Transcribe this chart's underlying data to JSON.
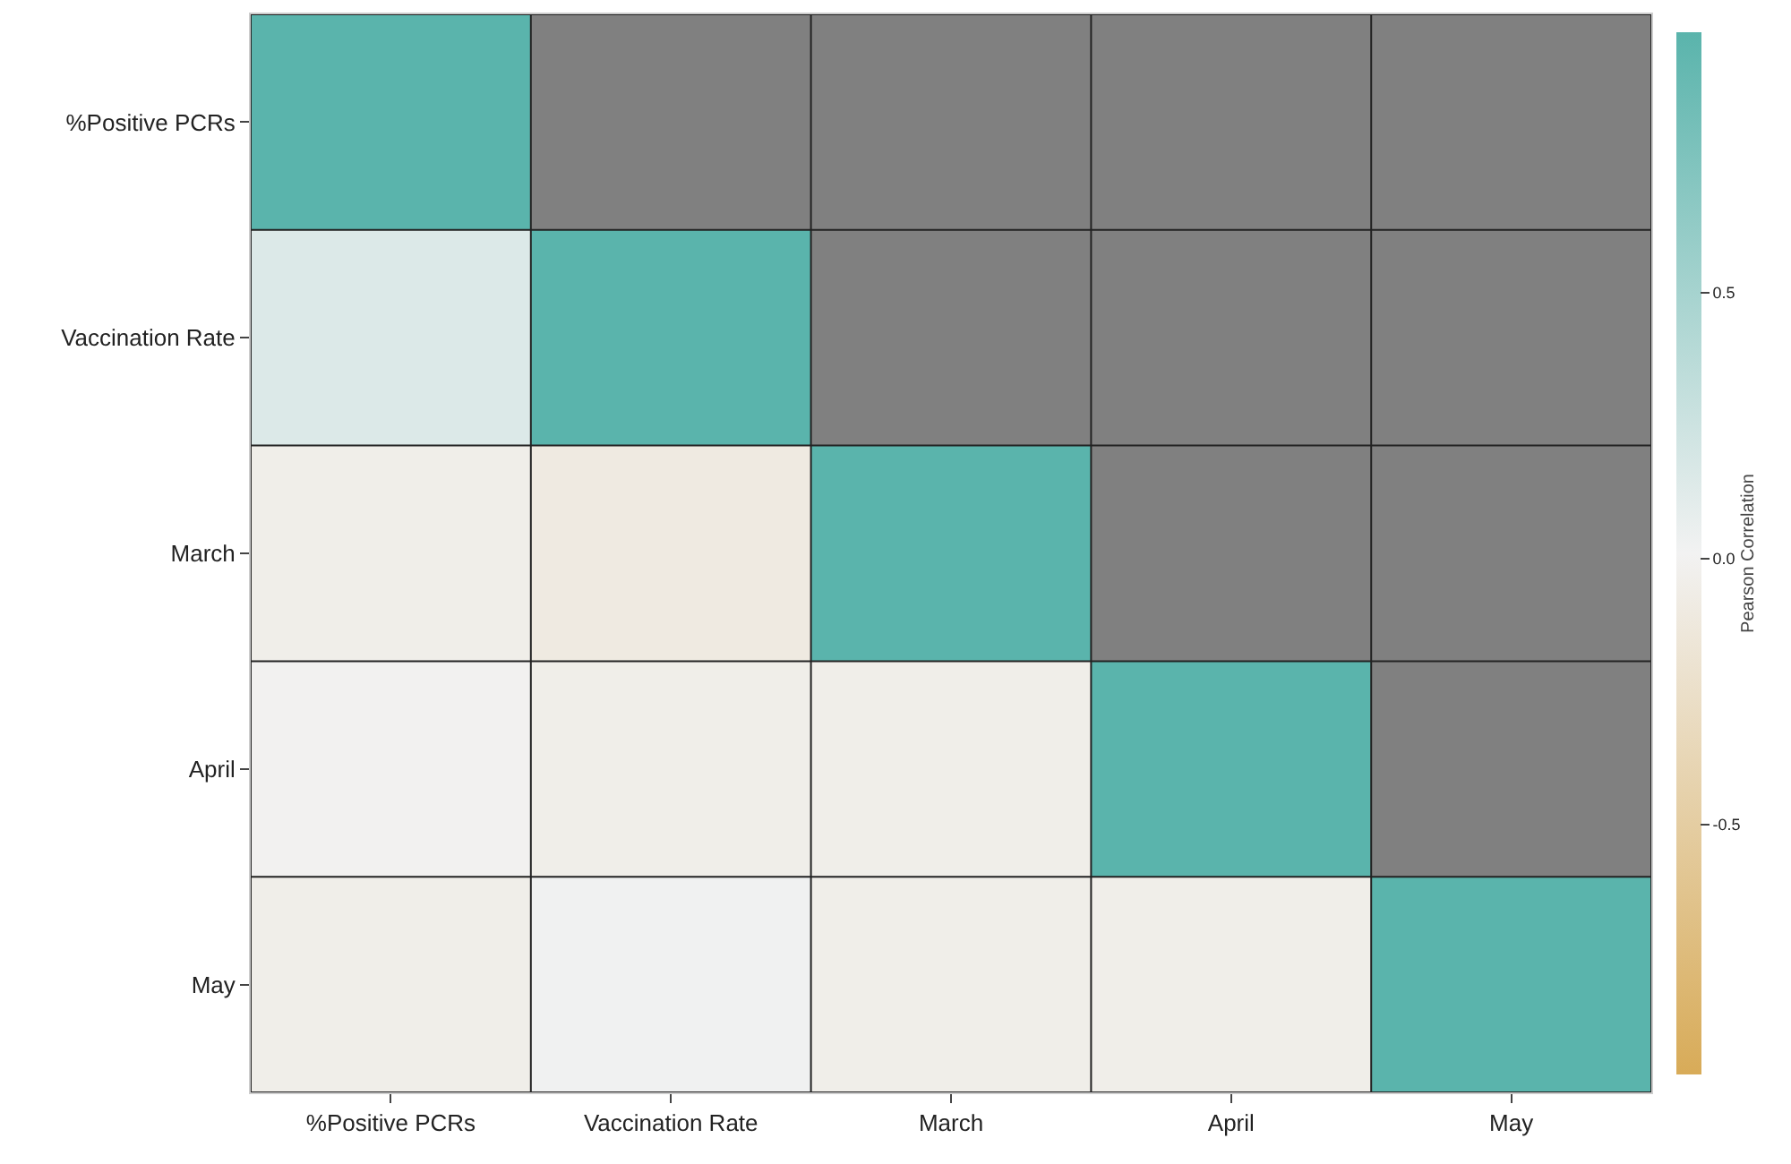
{
  "chart_data": {
    "type": "heatmap",
    "clabel": "Pearson Correlation",
    "categories": [
      "%Positive PCRs",
      "Vaccination Rate",
      "March",
      "April",
      "May"
    ],
    "y_categories": [
      "%Positive PCRs",
      "Vaccination Rate",
      "March",
      "April",
      "May"
    ],
    "cells": [
      [
        1,
        null,
        null,
        null,
        null
      ],
      [
        0.15,
        1,
        null,
        null,
        null
      ],
      [
        -0.05,
        -0.1,
        1,
        null,
        null
      ],
      [
        0.0,
        -0.05,
        -0.05,
        1,
        null
      ],
      [
        -0.05,
        0.02,
        -0.05,
        -0.05,
        1
      ]
    ],
    "clim": [
      -0.97,
      0.99
    ],
    "cticks": [
      {
        "value": 0.5,
        "label": "0.5"
      },
      {
        "value": 0.0,
        "label": "0.0"
      },
      {
        "value": -0.5,
        "label": "-0.5"
      }
    ]
  }
}
